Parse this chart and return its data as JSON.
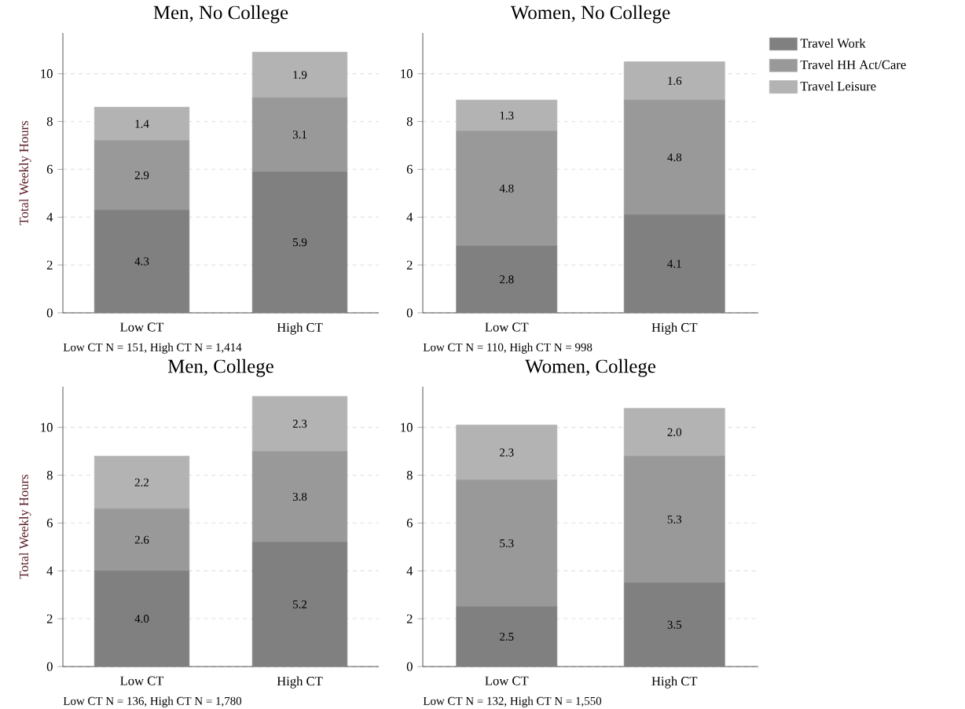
{
  "chart_data": [
    {
      "type": "bar",
      "stacked": true,
      "title": "Men, No College",
      "ylabel": "Total Weekly Hours",
      "categories": [
        "Low CT",
        "High CT"
      ],
      "ylim": [
        0,
        11.7
      ],
      "yticks": [
        0,
        2,
        4,
        6,
        8,
        10
      ],
      "grid": "y",
      "legend": false,
      "annotations": [
        "Low CT N = 151, High CT N = 1,414"
      ],
      "series": [
        {
          "color": "#808080",
          "values": [
            4.3,
            5.9
          ],
          "value_labels": [
            "4.3",
            "5.9"
          ]
        },
        {
          "color": "#999999",
          "values": [
            2.9,
            3.1
          ],
          "value_labels": [
            "2.9",
            "3.1"
          ]
        },
        {
          "color": "#b3b3b3",
          "values": [
            1.4,
            1.9
          ],
          "value_labels": [
            "1.4",
            "1.9"
          ]
        }
      ]
    },
    {
      "type": "bar",
      "stacked": true,
      "title": "Women, No College",
      "categories": [
        "Low CT",
        "High CT"
      ],
      "ylim": [
        0,
        11.7
      ],
      "yticks": [
        0,
        2,
        4,
        6,
        8,
        10
      ],
      "grid": "y",
      "legend": "right",
      "annotations": [
        "Low CT N = 110, High CT N = 998"
      ],
      "series": [
        {
          "name": "Travel Work",
          "color": "#808080",
          "values": [
            2.8,
            4.1
          ],
          "value_labels": [
            "2.8",
            "4.1"
          ]
        },
        {
          "name": "Travel HH Act/Care",
          "color": "#999999",
          "values": [
            4.8,
            4.8
          ],
          "value_labels": [
            "4.8",
            "4.8"
          ]
        },
        {
          "name": "Travel Leisure",
          "color": "#b3b3b3",
          "values": [
            1.3,
            1.6
          ],
          "value_labels": [
            "1.3",
            "1.6"
          ]
        }
      ]
    },
    {
      "type": "bar",
      "stacked": true,
      "title": "Men, College",
      "ylabel": "Total Weekly Hours",
      "categories": [
        "Low CT",
        "High CT"
      ],
      "ylim": [
        0,
        11.7
      ],
      "yticks": [
        0,
        2,
        4,
        6,
        8,
        10
      ],
      "grid": "y",
      "legend": false,
      "annotations": [
        "Low CT N = 136, High CT N = 1,780"
      ],
      "series": [
        {
          "color": "#808080",
          "values": [
            4.0,
            5.2
          ],
          "value_labels": [
            "4.0",
            "5.2"
          ]
        },
        {
          "color": "#999999",
          "values": [
            2.6,
            3.8
          ],
          "value_labels": [
            "2.6",
            "3.8"
          ]
        },
        {
          "color": "#b3b3b3",
          "values": [
            2.2,
            2.3
          ],
          "value_labels": [
            "2.2",
            "2.3"
          ]
        }
      ]
    },
    {
      "type": "bar",
      "stacked": true,
      "title": "Women, College",
      "categories": [
        "Low CT",
        "High CT"
      ],
      "ylim": [
        0,
        11.7
      ],
      "yticks": [
        0,
        2,
        4,
        6,
        8,
        10
      ],
      "grid": "y",
      "legend": false,
      "annotations": [
        "Low CT N = 132, High CT N = 1,550"
      ],
      "series": [
        {
          "color": "#808080",
          "values": [
            2.5,
            3.5
          ],
          "value_labels": [
            "2.5",
            "3.5"
          ]
        },
        {
          "color": "#999999",
          "values": [
            5.3,
            5.3
          ],
          "value_labels": [
            "5.3",
            "5.3"
          ]
        },
        {
          "color": "#b3b3b3",
          "values": [
            2.3,
            2.0
          ],
          "value_labels": [
            "2.3",
            "2.0"
          ]
        }
      ]
    }
  ]
}
